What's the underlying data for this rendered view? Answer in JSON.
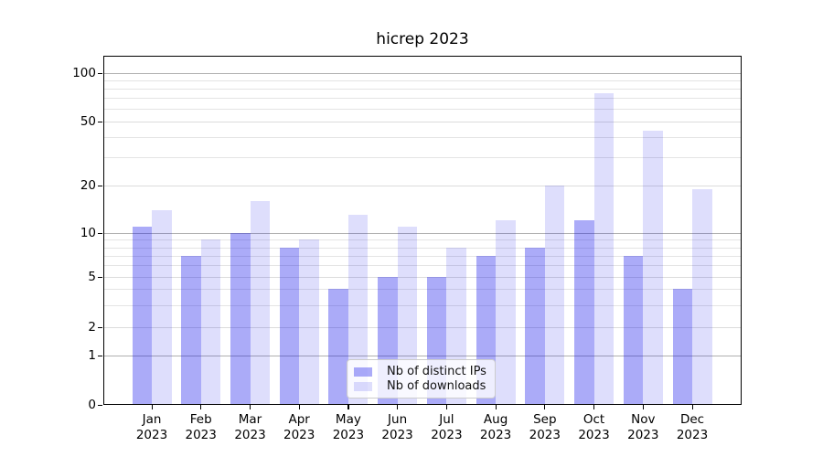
{
  "chart_data": {
    "type": "bar",
    "title": "hicrep 2023",
    "x_year": "2023",
    "categories": [
      "Jan",
      "Feb",
      "Mar",
      "Apr",
      "May",
      "Jun",
      "Jul",
      "Aug",
      "Sep",
      "Oct",
      "Nov",
      "Dec"
    ],
    "series": [
      {
        "name": "Nb of distinct IPs",
        "color": "rgba(10,10,235,0.34)",
        "values": [
          11,
          7,
          10,
          8,
          4,
          5,
          5,
          7,
          8,
          12,
          7,
          4
        ]
      },
      {
        "name": "Nb of downloads",
        "color": "rgba(10,10,235,0.135)",
        "values": [
          14,
          9,
          16,
          9,
          13,
          11,
          8,
          12,
          20,
          75,
          44,
          19
        ]
      }
    ],
    "y_axis": {
      "scale": "symlog",
      "tick_labels": [
        "0",
        "1",
        "2",
        "5",
        "10",
        "20",
        "50",
        "100"
      ],
      "ticks": [
        0,
        1,
        2,
        5,
        10,
        20,
        50,
        100
      ],
      "major_gridlines": [
        1,
        10,
        100
      ],
      "labeled_minor_gridlines": [
        2,
        5,
        20,
        50
      ],
      "minor_gridlines": [
        3,
        4,
        6,
        7,
        8,
        9,
        30,
        40,
        60,
        70,
        80,
        90
      ],
      "ylim": [
        0,
        125
      ]
    },
    "legend": {
      "position": "lower center"
    },
    "grid": true,
    "colors": {
      "major_grid": "#b0b0b0",
      "minor_grid": "#e4e4e4",
      "axis": "#000000",
      "text": "#000000"
    }
  }
}
